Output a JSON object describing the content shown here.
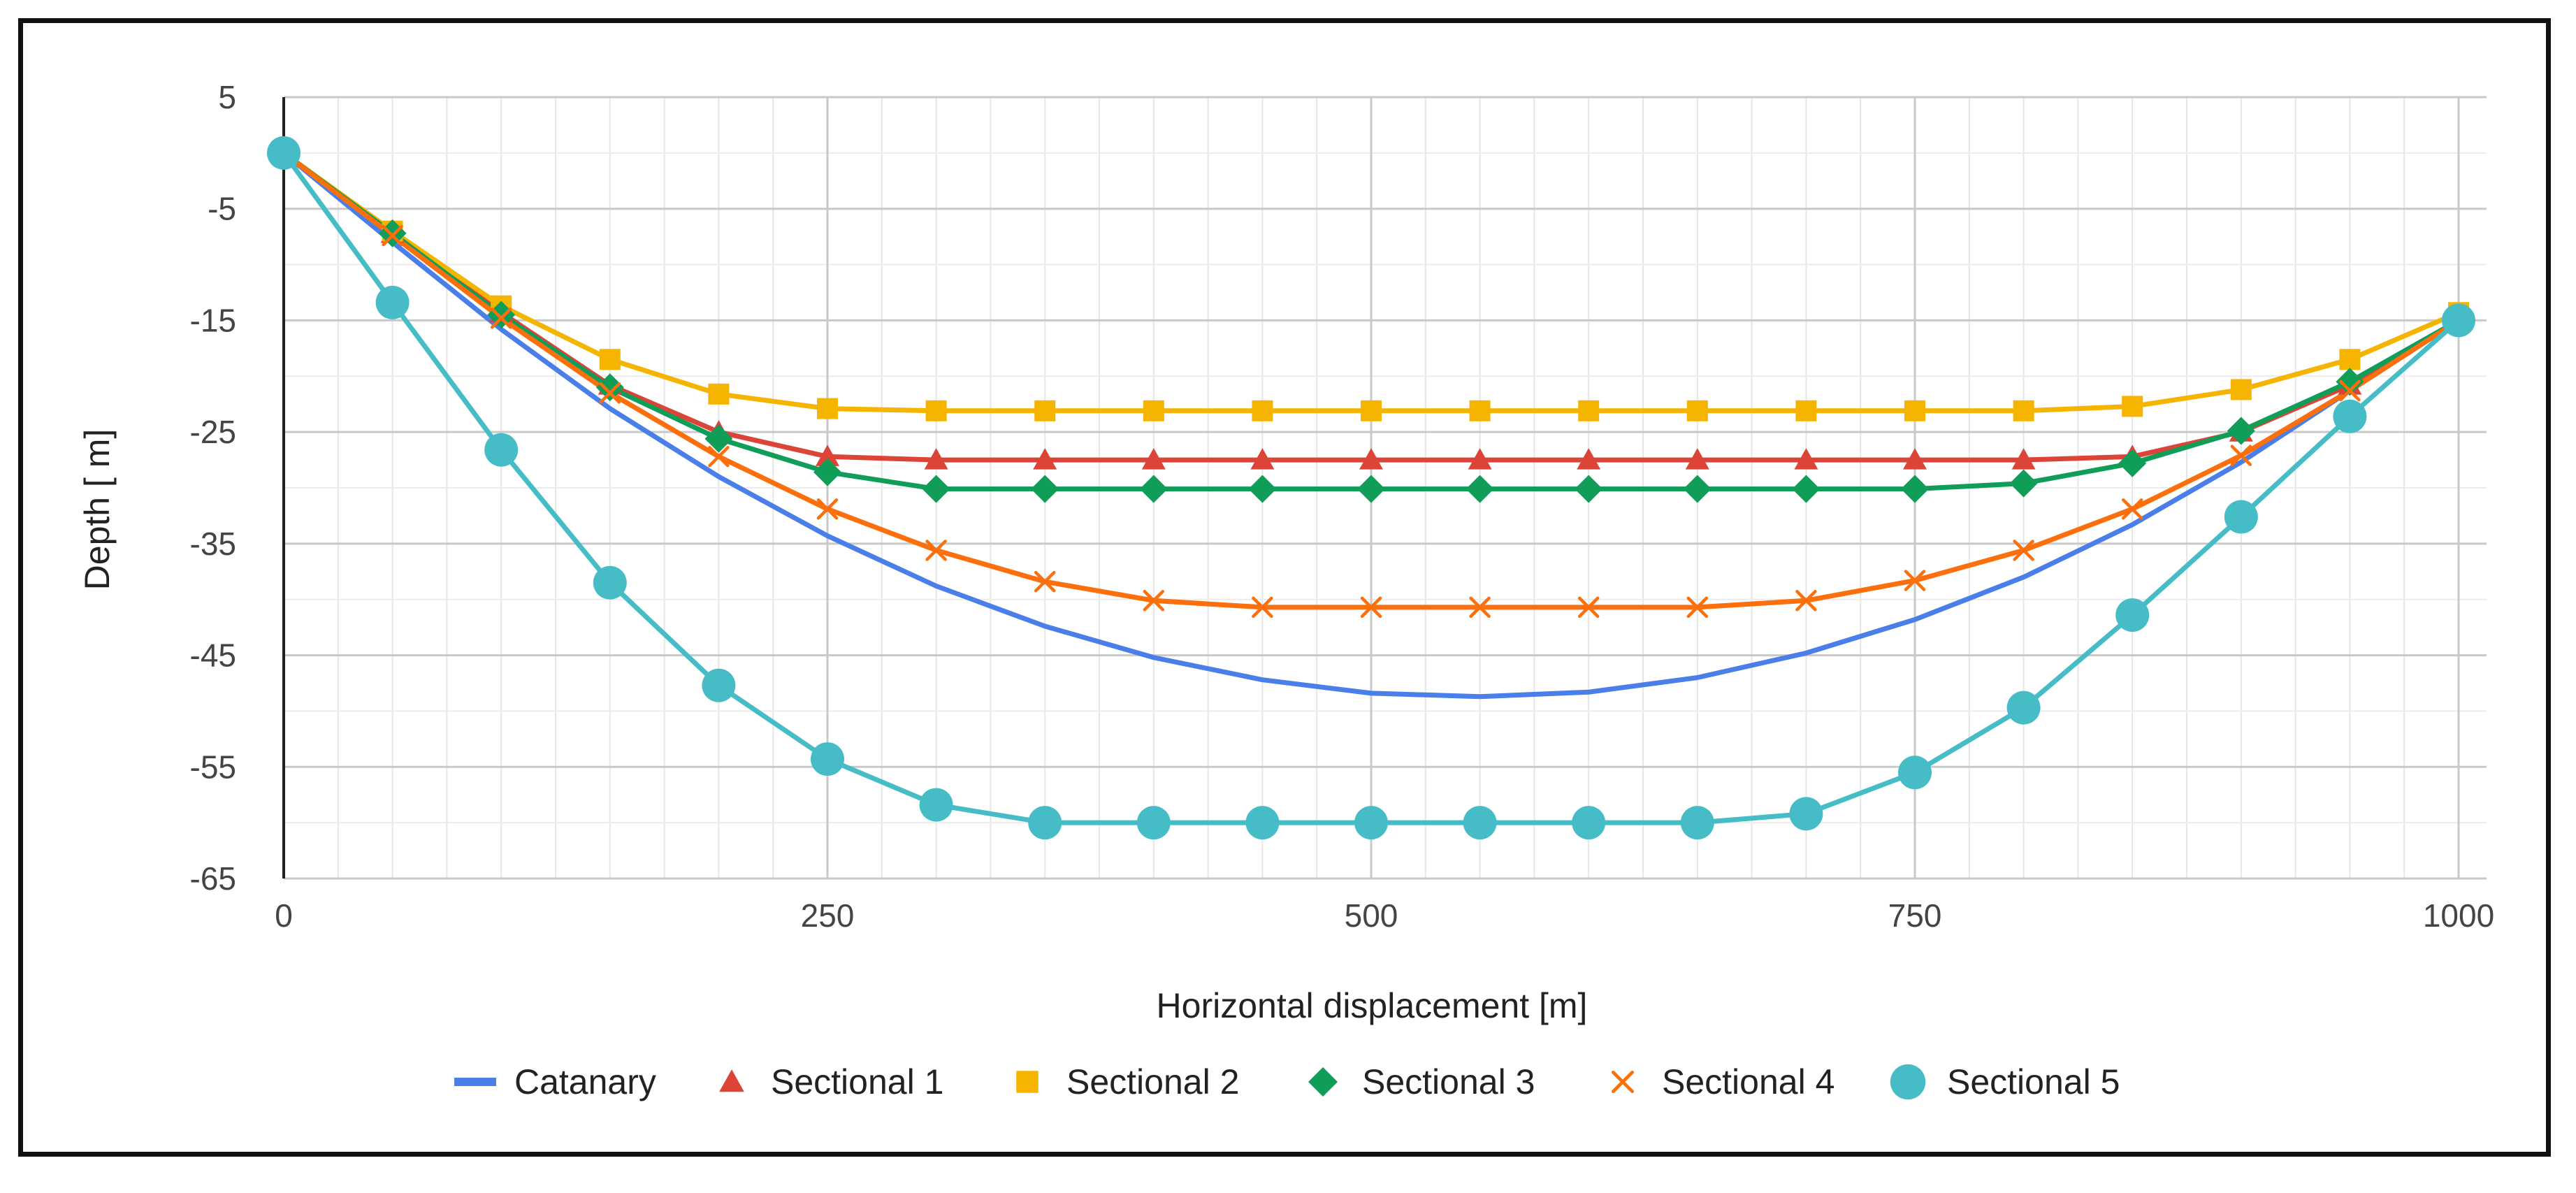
{
  "chart_data": {
    "type": "line",
    "title": "",
    "xlabel": "Horizontal displacement [m]",
    "ylabel": "Depth [ m]",
    "xlim": [
      0,
      1000
    ],
    "ylim": [
      -65,
      5
    ],
    "xticks": [
      0,
      250,
      500,
      750,
      1000
    ],
    "yticks": [
      5,
      -5,
      -15,
      -25,
      -35,
      -45,
      -55,
      -65
    ],
    "x_minor_step": 50,
    "y_minor_step": 5,
    "grid": true,
    "legend_position": "bottom",
    "x": [
      0,
      50,
      100,
      150,
      200,
      250,
      300,
      350,
      400,
      450,
      500,
      550,
      600,
      650,
      700,
      750,
      800,
      850,
      900,
      950,
      1000
    ],
    "series": [
      {
        "name": "Catanary",
        "marker": "line",
        "color": "#4a7ee8",
        "values": [
          0,
          -8,
          -15.8,
          -22.9,
          -29,
          -34.3,
          -38.8,
          -42.4,
          -45.2,
          -47.2,
          -48.4,
          -48.7,
          -48.3,
          -47,
          -44.8,
          -41.8,
          -38,
          -33.3,
          -27.7,
          -21.3,
          -15
        ]
      },
      {
        "name": "Sectional 1",
        "marker": "triangle",
        "color": "#db4437",
        "values": [
          0,
          -7.2,
          -14.3,
          -20.8,
          -25,
          -27.2,
          -27.5,
          -27.5,
          -27.5,
          -27.5,
          -27.5,
          -27.5,
          -27.5,
          -27.5,
          -27.5,
          -27.5,
          -27.5,
          -27.2,
          -25,
          -20.8,
          -15
        ]
      },
      {
        "name": "Sectional 2",
        "marker": "square",
        "color": "#f4b400",
        "values": [
          0,
          -7,
          -13.7,
          -18.5,
          -21.6,
          -22.9,
          -23.1,
          -23.1,
          -23.1,
          -23.1,
          -23.1,
          -23.1,
          -23.1,
          -23.1,
          -23.1,
          -23.1,
          -23.1,
          -22.7,
          -21.2,
          -18.5,
          -14.3
        ]
      },
      {
        "name": "Sectional 3",
        "marker": "diamond",
        "color": "#0f9d58",
        "values": [
          0,
          -7.2,
          -14.5,
          -21,
          -25.6,
          -28.6,
          -30.1,
          -30.1,
          -30.1,
          -30.1,
          -30.1,
          -30.1,
          -30.1,
          -30.1,
          -30.1,
          -30.1,
          -29.6,
          -27.8,
          -24.9,
          -20.5,
          -15
        ]
      },
      {
        "name": "Sectional 4",
        "marker": "x",
        "color": "#fb6f0c",
        "values": [
          0,
          -7.4,
          -14.8,
          -21.5,
          -27.2,
          -31.9,
          -35.6,
          -38.4,
          -40.1,
          -40.7,
          -40.7,
          -40.7,
          -40.7,
          -40.7,
          -40.1,
          -38.3,
          -35.6,
          -31.9,
          -27.1,
          -21.3,
          -15
        ]
      },
      {
        "name": "Sectional 5",
        "marker": "circle",
        "color": "#46bdc6",
        "values": [
          0,
          -13.4,
          -26.6,
          -38.5,
          -47.7,
          -54.3,
          -58.4,
          -60,
          -60,
          -60,
          -60,
          -60,
          -60,
          -60,
          -59.2,
          -55.5,
          -49.7,
          -41.4,
          -32.6,
          -23.6,
          -15
        ]
      }
    ]
  }
}
